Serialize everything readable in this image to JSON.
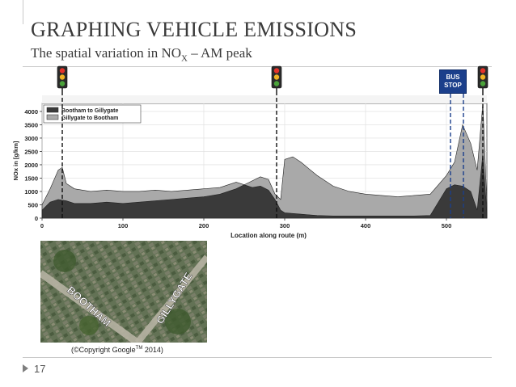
{
  "slide": {
    "title": "GRAPHING VEHICLE EMISSIONS",
    "subtitle_main": "The spatial variation in NO",
    "subtitle_sub": "X",
    "subtitle_tail": " – AM peak",
    "page_number": "17"
  },
  "bus_stop": {
    "line1": "BUS",
    "line2": "STOP"
  },
  "map": {
    "label_left": "BOOTHAM",
    "label_right": "GILLYGATE",
    "copyright_pre": "(©Copyright Google",
    "copyright_sup": "TM",
    "copyright_post": " 2014)"
  },
  "colors": {
    "series1": "#3a3a3a",
    "series2": "#a9a9a9",
    "light_red": "#e5332a",
    "light_amber": "#f0b323",
    "light_green": "#4aa33a"
  },
  "chart_data": {
    "type": "area",
    "xlabel": "Location along route (m)",
    "ylabel": "NOx in [g/km]",
    "xlim": [
      0,
      550
    ],
    "ylim": [
      0,
      4300
    ],
    "xticks": [
      0,
      100,
      200,
      300,
      400,
      500
    ],
    "yticks": [
      0,
      500,
      1000,
      1500,
      2000,
      2500,
      3000,
      3500,
      4000
    ],
    "legend_position": "top-left",
    "series": [
      {
        "name": "Bootham to Gillygate",
        "x": [
          0,
          10,
          20,
          30,
          40,
          60,
          80,
          100,
          120,
          140,
          160,
          180,
          200,
          220,
          240,
          250,
          260,
          270,
          280,
          288,
          295,
          300,
          320,
          340,
          360,
          380,
          400,
          420,
          440,
          460,
          480,
          500,
          510,
          520,
          530,
          538,
          545,
          550
        ],
        "values": [
          300,
          600,
          700,
          650,
          550,
          550,
          600,
          550,
          600,
          650,
          700,
          750,
          800,
          900,
          1100,
          1250,
          1150,
          1200,
          1050,
          700,
          300,
          200,
          150,
          100,
          80,
          80,
          80,
          80,
          80,
          80,
          100,
          1100,
          1250,
          1200,
          1000,
          300,
          2400,
          200
        ]
      },
      {
        "name": "Gillygate to Bootham",
        "x": [
          0,
          10,
          20,
          25,
          30,
          40,
          60,
          80,
          100,
          120,
          140,
          160,
          180,
          200,
          220,
          240,
          250,
          260,
          270,
          280,
          288,
          295,
          300,
          310,
          320,
          340,
          360,
          380,
          400,
          420,
          440,
          460,
          480,
          500,
          510,
          520,
          530,
          538,
          545,
          550
        ],
        "values": [
          500,
          1100,
          1800,
          1900,
          1300,
          1100,
          1000,
          1050,
          1000,
          1000,
          1050,
          1000,
          1050,
          1100,
          1150,
          1350,
          1250,
          1400,
          1550,
          1450,
          900,
          700,
          2200,
          2300,
          2100,
          1600,
          1200,
          1000,
          900,
          850,
          800,
          850,
          900,
          1600,
          2100,
          3500,
          2800,
          1800,
          4300,
          500
        ]
      }
    ],
    "annotations": {
      "traffic_light_x": [
        25,
        290,
        545
      ],
      "bus_stop_x": [
        505,
        521
      ]
    }
  }
}
